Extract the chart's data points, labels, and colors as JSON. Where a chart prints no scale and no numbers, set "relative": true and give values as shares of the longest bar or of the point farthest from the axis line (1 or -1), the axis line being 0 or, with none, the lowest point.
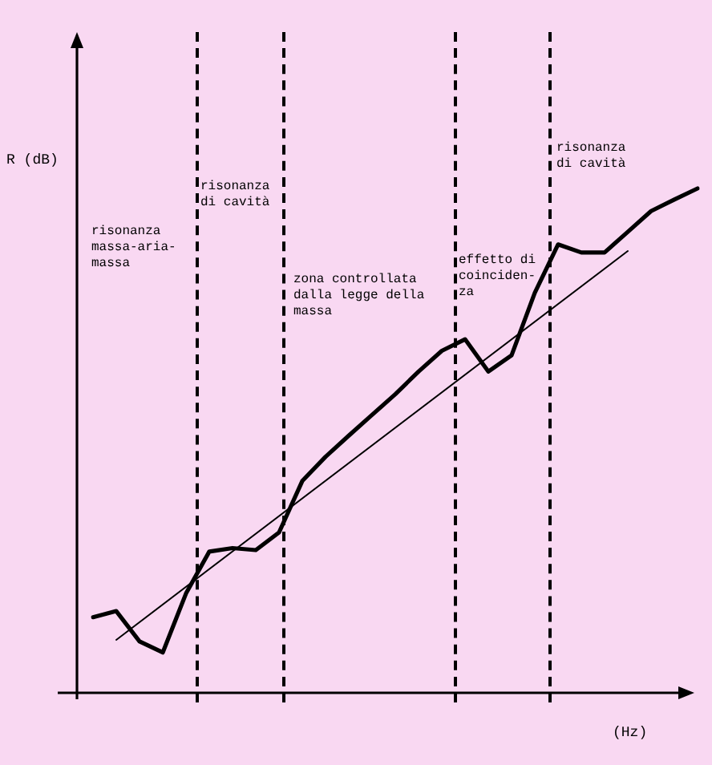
{
  "chart_data": {
    "type": "line",
    "relative": true,
    "ylabel": "R (dB)",
    "xlabel": "(Hz)",
    "marker": "none",
    "line_style": "solid",
    "categories": [
      null,
      null,
      null,
      null,
      null,
      null,
      null,
      null,
      null,
      null,
      null,
      null,
      null,
      null,
      null,
      null,
      null,
      null,
      null,
      null,
      null,
      null,
      null,
      null,
      null,
      null,
      null
    ],
    "series": [
      {
        "color": "#000000",
        "values": [
          0.15,
          0.162,
          0.102,
          0.08,
          0.197,
          0.28,
          0.287,
          0.283,
          0.318,
          0.42,
          0.468,
          0.51,
          0.551,
          0.592,
          0.637,
          0.678,
          0.701,
          0.637,
          0.669,
          0.793,
          0.889,
          0.873,
          0.873,
          0.914,
          0.955,
          0.978,
          1
        ]
      },
      {
        "color": "#000000",
        "values": [
          null,
          0.105,
          null,
          null,
          null,
          null,
          null,
          null,
          null,
          null,
          null,
          null,
          null,
          null,
          null,
          null,
          null,
          null,
          null,
          null,
          null,
          null,
          null,
          0.876,
          null,
          null,
          null
        ]
      }
    ],
    "annotations": [
      "risonanza\nmassa-aria-\nmassa",
      "risonanza\ndi cavità",
      "zona controllata\ndalla legge della\nmassa",
      "effetto di\ncoinciden-\nza",
      "risonanza\ndi cavità"
    ]
  }
}
